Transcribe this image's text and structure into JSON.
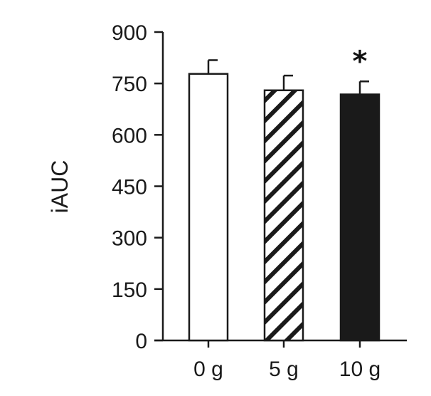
{
  "chart_data": {
    "type": "bar",
    "title": "",
    "xlabel": "",
    "ylabel": "iAUC",
    "ylim": [
      0,
      900
    ],
    "yticks": [
      0,
      150,
      300,
      450,
      600,
      750,
      900
    ],
    "ytick_labels": [
      "0",
      "150",
      "300",
      "450",
      "600",
      "750",
      "900"
    ],
    "categories": [
      "0 g",
      "5 g",
      "10 g"
    ],
    "values": [
      778,
      730,
      718
    ],
    "errors": [
      40,
      43,
      38
    ],
    "fills": [
      "white",
      "hatched",
      "black"
    ],
    "annotations": [
      {
        "category": "10 g",
        "text": "*"
      }
    ],
    "grid": false,
    "legend": "none",
    "colors": {
      "bar_edge": "#1a1a1a",
      "solid": "#1a1a1a",
      "open": "#ffffff"
    }
  }
}
